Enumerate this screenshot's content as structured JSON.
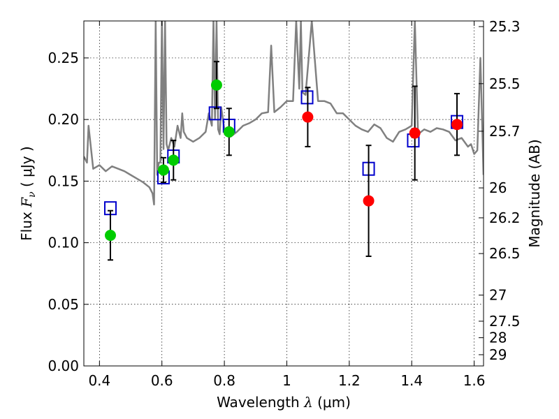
{
  "chart_data": {
    "type": "scatter",
    "xlabel": {
      "prefix": "Wavelength  ",
      "symbol": "λ",
      "unit": " (μm)"
    },
    "ylabel": {
      "prefix": "Flux  ",
      "symbol": "F",
      "sub": "ν",
      "unit": "  ( μJy )"
    },
    "y2label": "Magnitude (AB)",
    "xlim": [
      0.35,
      1.63
    ],
    "ylim": [
      0.0,
      0.28
    ],
    "grid": true,
    "x_ticks": [
      {
        "v": 0.4,
        "label": "0.4"
      },
      {
        "v": 0.6,
        "label": "0.6"
      },
      {
        "v": 0.8,
        "label": "0.8"
      },
      {
        "v": 1.0,
        "label": "1"
      },
      {
        "v": 1.2,
        "label": "1.2"
      },
      {
        "v": 1.4,
        "label": "1.4"
      },
      {
        "v": 1.6,
        "label": "1.6"
      }
    ],
    "y_ticks": [
      {
        "v": 0.0,
        "label": "0.00"
      },
      {
        "v": 0.05,
        "label": "0.05"
      },
      {
        "v": 0.1,
        "label": "0.10"
      },
      {
        "v": 0.15,
        "label": "0.15"
      },
      {
        "v": 0.2,
        "label": "0.20"
      },
      {
        "v": 0.25,
        "label": "0.25"
      }
    ],
    "mag_ticks": [
      {
        "label": "25.3",
        "flux": 0.2754
      },
      {
        "label": "25.5",
        "flux": 0.2291
      },
      {
        "label": "25.7",
        "flux": 0.1905
      },
      {
        "label": "26",
        "flux": 0.1445
      },
      {
        "label": "26.2",
        "flux": 0.1202
      },
      {
        "label": "26.5",
        "flux": 0.0912
      },
      {
        "label": "27",
        "flux": 0.0575
      },
      {
        "label": "27.5",
        "flux": 0.0363
      },
      {
        "label": "28",
        "flux": 0.0229
      },
      {
        "label": "29",
        "flux": 0.0091
      }
    ],
    "series": [
      {
        "name": "model_spectrum",
        "kind": "line",
        "color": "#808080",
        "x": [
          0.35,
          0.36,
          0.365,
          0.38,
          0.4,
          0.42,
          0.43,
          0.44,
          0.46,
          0.48,
          0.5,
          0.52,
          0.54,
          0.56,
          0.57,
          0.575,
          0.58,
          0.585,
          0.59,
          0.595,
          0.6,
          0.605,
          0.61,
          0.615,
          0.62,
          0.63,
          0.64,
          0.65,
          0.66,
          0.665,
          0.67,
          0.68,
          0.7,
          0.72,
          0.74,
          0.75,
          0.76,
          0.765,
          0.77,
          0.775,
          0.78,
          0.785,
          0.79,
          0.8,
          0.82,
          0.84,
          0.86,
          0.88,
          0.9,
          0.92,
          0.94,
          0.95,
          0.96,
          0.98,
          1.0,
          1.02,
          1.03,
          1.04,
          1.045,
          1.05,
          1.06,
          1.08,
          1.1,
          1.12,
          1.14,
          1.16,
          1.18,
          1.2,
          1.22,
          1.24,
          1.26,
          1.28,
          1.3,
          1.32,
          1.34,
          1.36,
          1.38,
          1.4,
          1.41,
          1.42,
          1.44,
          1.46,
          1.48,
          1.5,
          1.52,
          1.54,
          1.56,
          1.58,
          1.59,
          1.6,
          1.61,
          1.62,
          1.63
        ],
        "y": [
          0.17,
          0.165,
          0.195,
          0.16,
          0.163,
          0.158,
          0.16,
          0.162,
          0.16,
          0.158,
          0.155,
          0.152,
          0.149,
          0.145,
          0.14,
          0.131,
          0.28,
          0.155,
          0.165,
          0.165,
          0.28,
          0.176,
          0.28,
          0.18,
          0.175,
          0.185,
          0.178,
          0.195,
          0.185,
          0.205,
          0.19,
          0.185,
          0.182,
          0.185,
          0.19,
          0.205,
          0.195,
          0.28,
          0.2,
          0.28,
          0.192,
          0.188,
          0.21,
          0.192,
          0.186,
          0.19,
          0.195,
          0.197,
          0.2,
          0.205,
          0.206,
          0.26,
          0.206,
          0.21,
          0.215,
          0.215,
          0.28,
          0.225,
          0.28,
          0.222,
          0.22,
          0.28,
          0.215,
          0.215,
          0.213,
          0.205,
          0.205,
          0.2,
          0.195,
          0.192,
          0.19,
          0.196,
          0.193,
          0.185,
          0.182,
          0.19,
          0.192,
          0.195,
          0.28,
          0.188,
          0.192,
          0.19,
          0.193,
          0.192,
          0.19,
          0.183,
          0.185,
          0.178,
          0.18,
          0.172,
          0.175,
          0.25,
          0.155
        ]
      },
      {
        "name": "model_photometry",
        "kind": "open-square",
        "color": "#0000cc",
        "x": [
          0.435,
          0.605,
          0.637,
          0.77,
          0.815,
          1.065,
          1.262,
          1.405,
          1.545
        ],
        "y": [
          0.128,
          0.153,
          0.17,
          0.205,
          0.195,
          0.218,
          0.16,
          0.183,
          0.198
        ]
      },
      {
        "name": "hst_observed",
        "kind": "filled-circle",
        "color": "#00cc00",
        "x": [
          0.435,
          0.605,
          0.637,
          0.775,
          0.815
        ],
        "y": [
          0.106,
          0.159,
          0.167,
          0.228,
          0.19
        ],
        "err": [
          0.02,
          0.01,
          0.016,
          0.019,
          0.019
        ]
      },
      {
        "name": "ir_observed",
        "kind": "filled-circle",
        "color": "#ff0000",
        "x": [
          1.067,
          1.262,
          1.41,
          1.545
        ],
        "y": [
          0.202,
          0.134,
          0.189,
          0.196
        ],
        "err": [
          0.024,
          0.045,
          0.038,
          0.025
        ]
      }
    ]
  }
}
